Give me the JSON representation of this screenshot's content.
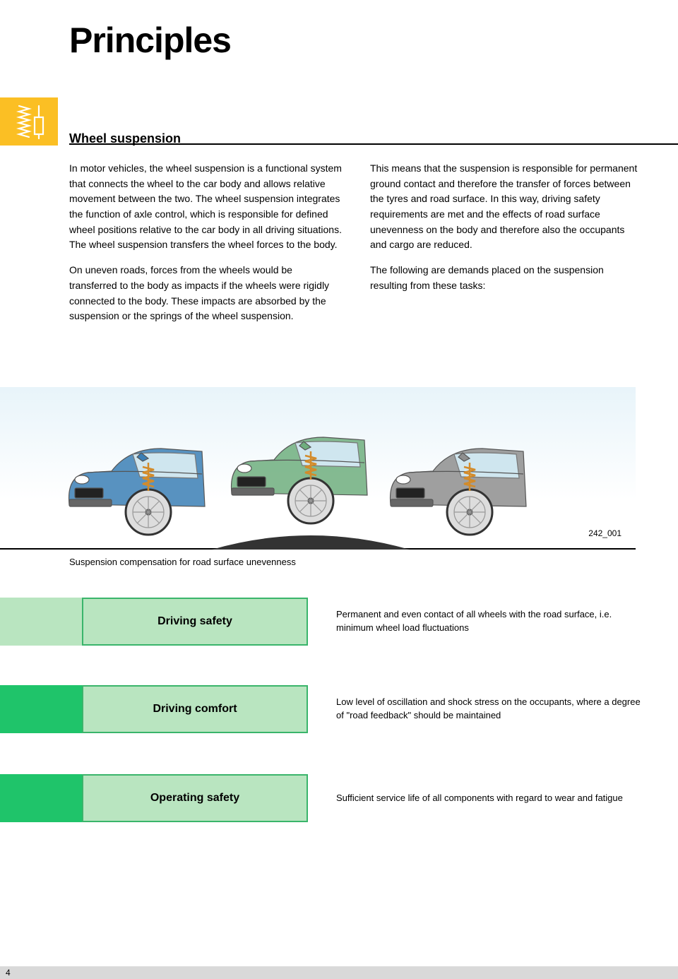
{
  "title": "Principles",
  "subtitle": "Wheel suspension",
  "col_left_p1": "In motor vehicles, the wheel suspension is a functional system that connects the wheel to the car body and allows relative movement between the two. The wheel suspension integrates the function of axle control, which is responsible for defined wheel positions relative to the car body in all driving situations. The wheel suspension transfers the wheel forces to the body.",
  "col_left_p2": "On uneven roads, forces from the wheels would be transferred to the body as impacts if the wheels were rigidly connected to the body. These impacts are absorbed by the suspension or the springs of the wheel suspension.",
  "col_right_p1": "This means that the suspension is responsible for permanent ground contact and therefore the transfer of forces between the tyres and road surface. In this way, driving safety requirements are met and the effects of road surface unevenness on the body and therefore also the occupants and cargo are reduced.",
  "col_right_p2": "The following are demands placed on the suspension resulting from these tasks:",
  "figure_note": "Suspension compensation for road surface unevenness",
  "figure_ref": "242_001",
  "car_colors": [
    "#3b7fb5",
    "#6fae7e",
    "#8e8e8e"
  ],
  "rows": [
    {
      "label": "Driving safety",
      "tab_color": "#b9e5c0",
      "pill_bg": "#b9e5c0",
      "pill_border": "#3ab56b",
      "text": "Permanent and even contact of all wheels with the road surface, i.e. minimum wheel load fluctuations"
    },
    {
      "label": "Driving comfort",
      "tab_color": "#1fc46a",
      "pill_bg": "#b9e5c0",
      "pill_border": "#3ab56b",
      "text": "Low level of oscillation and shock stress on the occupants, where a degree of \"road feedback\" should be maintained"
    },
    {
      "label": "Operating safety",
      "tab_color": "#1fc46a",
      "pill_bg": "#b9e5c0",
      "pill_border": "#3ab56b",
      "text": "Sufficient service life of all components with regard to wear and fatigue"
    }
  ],
  "page_number": "4",
  "icon_bg": "#fbbf24",
  "icon_fg": "#ffffff"
}
